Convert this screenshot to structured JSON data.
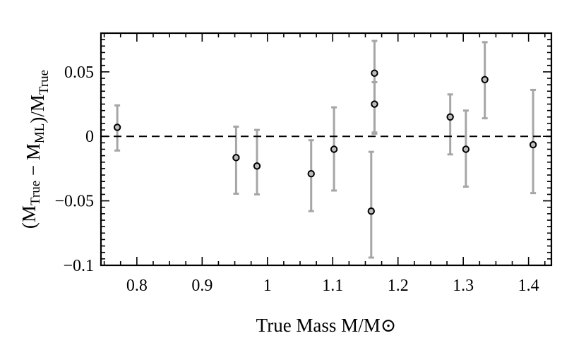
{
  "chart_data": {
    "type": "scatter",
    "xlabel": "True Mass M/M⊙",
    "ylabel": "(M_True − M_ML)/M_True",
    "xlim": [
      0.745,
      1.435
    ],
    "ylim": [
      -0.1,
      0.08
    ],
    "xticks": [
      0.8,
      0.9,
      1.0,
      1.1,
      1.2,
      1.3,
      1.4
    ],
    "xtick_labels": [
      "0.8",
      "0.9",
      "1",
      "1.1",
      "1.2",
      "1.3",
      "1.4"
    ],
    "yticks": [
      -0.1,
      -0.05,
      0,
      0.05
    ],
    "ytick_labels": [
      "−0.1",
      "−0.05",
      "0",
      "0.05"
    ],
    "reference_line": {
      "y": 0,
      "style": "dashed"
    },
    "grid": false,
    "legend": "none",
    "colors": {
      "marker_edge": "#000000",
      "marker_face": "#bdbdbd",
      "errorbar": "#a6a6a6",
      "reference_line": "#000000"
    },
    "points": [
      {
        "x": 0.77,
        "y": 0.007,
        "err_low": 0.018,
        "err_high": 0.017
      },
      {
        "x": 0.952,
        "y": -0.0165,
        "err_low": 0.028,
        "err_high": 0.024
      },
      {
        "x": 0.984,
        "y": -0.023,
        "err_low": 0.022,
        "err_high": 0.028
      },
      {
        "x": 1.067,
        "y": -0.029,
        "err_low": 0.029,
        "err_high": 0.026
      },
      {
        "x": 1.102,
        "y": -0.01,
        "err_low": 0.032,
        "err_high": 0.0325
      },
      {
        "x": 1.159,
        "y": -0.058,
        "err_low": 0.036,
        "err_high": 0.046
      },
      {
        "x": 1.164,
        "y": 0.049,
        "err_low": 0.047,
        "err_high": 0.025
      },
      {
        "x": 1.164,
        "y": 0.025,
        "err_low": 0.022,
        "err_high": 0.017
      },
      {
        "x": 1.28,
        "y": 0.015,
        "err_low": 0.029,
        "err_high": 0.0175
      },
      {
        "x": 1.304,
        "y": -0.01,
        "err_low": 0.029,
        "err_high": 0.03
      },
      {
        "x": 1.333,
        "y": 0.044,
        "err_low": 0.03,
        "err_high": 0.029
      },
      {
        "x": 1.407,
        "y": -0.0065,
        "err_low": 0.0375,
        "err_high": 0.0425
      }
    ]
  }
}
